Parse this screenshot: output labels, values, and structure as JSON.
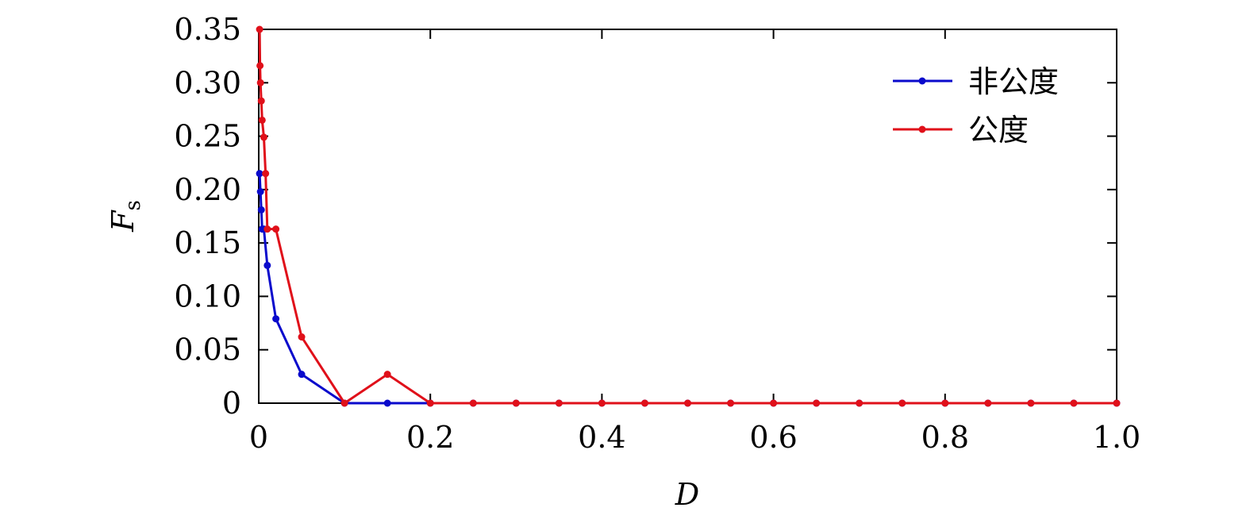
{
  "chart_data": {
    "type": "line",
    "xlabel": "D",
    "ylabel": "F",
    "ylabel_subscript": "s",
    "xlim": [
      0,
      1.0
    ],
    "ylim": [
      0,
      0.35
    ],
    "xticks": [
      0,
      0.2,
      0.4,
      0.6,
      0.8,
      {
        "value": 1.0,
        "label": "1.0"
      }
    ],
    "yticks": [
      0,
      0.05,
      {
        "value": 0.1,
        "label": "0.10"
      },
      0.15,
      {
        "value": 0.2,
        "label": "0.20"
      },
      0.25,
      {
        "value": 0.3,
        "label": "0.30"
      },
      0.35
    ],
    "legend": "upper right",
    "series": [
      {
        "name": "非公度",
        "color": "#0a0acc",
        "x": [
          0.001,
          0.002,
          0.003,
          0.004,
          0.006,
          0.01,
          0.02,
          0.05,
          0.1,
          0.15,
          0.2,
          0.25,
          0.3,
          0.35,
          0.4,
          0.45,
          0.5,
          0.55,
          0.6,
          0.65,
          0.7,
          0.75,
          0.8,
          0.85,
          0.9,
          0.95,
          1.0
        ],
        "values": [
          0.215,
          0.198,
          0.181,
          0.163,
          0.163,
          0.129,
          0.079,
          0.027,
          0,
          0,
          0,
          0,
          0,
          0,
          0,
          0,
          0,
          0,
          0,
          0,
          0,
          0,
          0,
          0,
          0,
          0,
          0
        ]
      },
      {
        "name": "公度",
        "color": "#e0101a",
        "x": [
          0.001,
          0.0015,
          0.002,
          0.003,
          0.004,
          0.006,
          0.008,
          0.01,
          0.02,
          0.05,
          0.1,
          0.15,
          0.2,
          0.25,
          0.3,
          0.35,
          0.4,
          0.45,
          0.5,
          0.55,
          0.6,
          0.65,
          0.7,
          0.75,
          0.8,
          0.85,
          0.9,
          0.95,
          1.0
        ],
        "values": [
          0.35,
          0.316,
          0.3,
          0.283,
          0.265,
          0.249,
          0.215,
          0.163,
          0.163,
          0.062,
          0,
          0.027,
          0,
          0,
          0,
          0,
          0,
          0,
          0,
          0,
          0,
          0,
          0,
          0,
          0,
          0,
          0,
          0,
          0
        ]
      }
    ]
  }
}
